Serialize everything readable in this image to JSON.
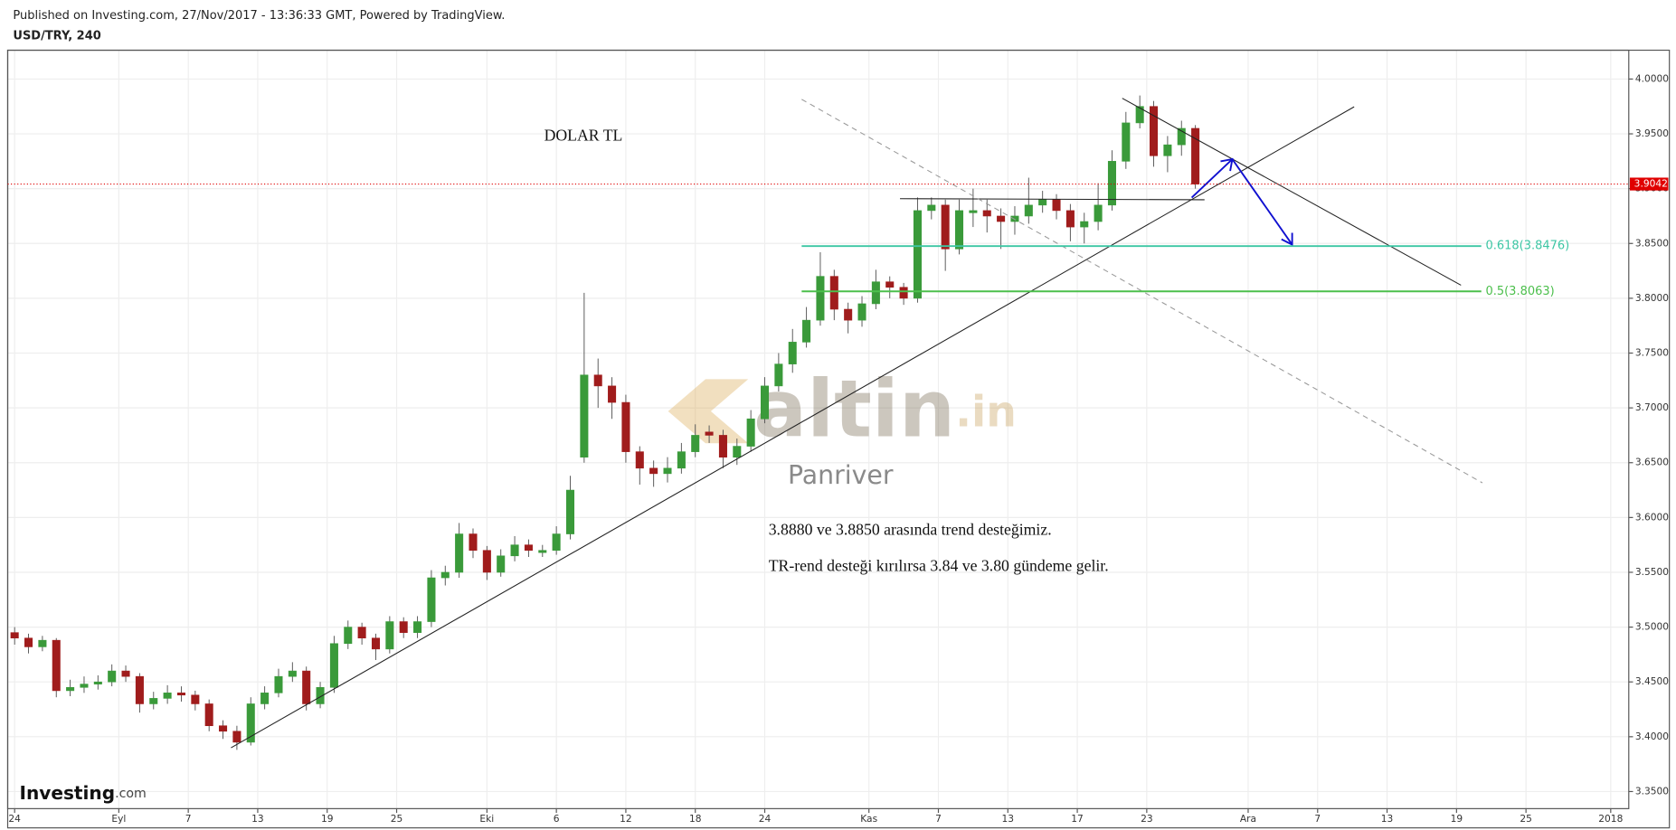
{
  "header": {
    "published": "Published on Investing.com, 27/Nov/2017 - 13:36:33 GMT, Powered by TradingView.",
    "symbol": "USD/TRY, 240"
  },
  "chart_data": {
    "type": "candlestick",
    "up_color": "#3a9a3a",
    "down_color": "#a01c1c",
    "grid": true,
    "x": [
      0,
      1,
      2,
      3,
      4,
      5,
      6,
      7,
      8,
      9,
      10,
      11,
      12,
      13,
      14,
      15,
      16,
      17,
      18,
      19,
      20,
      21,
      22,
      23,
      24,
      25,
      26,
      27,
      28,
      29,
      30,
      31,
      32,
      33,
      34,
      35,
      36,
      37,
      38,
      39,
      40,
      41,
      42,
      43,
      44,
      45,
      46,
      47,
      48,
      49,
      50,
      51,
      52,
      53,
      54,
      55,
      56,
      57,
      58,
      59,
      60,
      61,
      62,
      63,
      64,
      65,
      66,
      67,
      68,
      69,
      70,
      71,
      72,
      73,
      74,
      75,
      76,
      77,
      78,
      79,
      80,
      81,
      82,
      83,
      84,
      85
    ],
    "open": [
      3.495,
      3.49,
      3.482,
      3.488,
      3.442,
      3.445,
      3.448,
      3.45,
      3.46,
      3.455,
      3.43,
      3.435,
      3.44,
      3.438,
      3.43,
      3.41,
      3.405,
      3.395,
      3.43,
      3.44,
      3.455,
      3.46,
      3.43,
      3.445,
      3.485,
      3.5,
      3.49,
      3.48,
      3.505,
      3.495,
      3.505,
      3.545,
      3.55,
      3.585,
      3.57,
      3.55,
      3.565,
      3.575,
      3.568,
      3.57,
      3.585,
      3.655,
      3.73,
      3.72,
      3.705,
      3.66,
      3.645,
      3.64,
      3.645,
      3.66,
      3.678,
      3.675,
      3.655,
      3.665,
      3.69,
      3.72,
      3.74,
      3.76,
      3.78,
      3.82,
      3.79,
      3.78,
      3.795,
      3.815,
      3.81,
      3.8,
      3.88,
      3.885,
      3.845,
      3.878,
      3.88,
      3.875,
      3.87,
      3.875,
      3.885,
      3.89,
      3.88,
      3.865,
      3.87,
      3.885,
      3.925,
      3.96,
      3.975,
      3.93,
      3.94,
      3.955
    ],
    "high": [
      3.5,
      3.494,
      3.492,
      3.49,
      3.452,
      3.455,
      3.456,
      3.466,
      3.465,
      3.458,
      3.441,
      3.447,
      3.446,
      3.442,
      3.434,
      3.415,
      3.41,
      3.436,
      3.446,
      3.462,
      3.468,
      3.464,
      3.45,
      3.492,
      3.506,
      3.504,
      3.494,
      3.51,
      3.509,
      3.51,
      3.552,
      3.556,
      3.595,
      3.59,
      3.574,
      3.571,
      3.583,
      3.58,
      3.575,
      3.592,
      3.638,
      3.805,
      3.745,
      3.728,
      3.712,
      3.665,
      3.652,
      3.655,
      3.668,
      3.685,
      3.684,
      3.68,
      3.672,
      3.698,
      3.728,
      3.75,
      3.772,
      3.792,
      3.842,
      3.826,
      3.796,
      3.802,
      3.826,
      3.82,
      3.814,
      3.892,
      3.892,
      3.89,
      3.89,
      3.9,
      3.89,
      3.882,
      3.884,
      3.91,
      3.898,
      3.895,
      3.886,
      3.878,
      3.905,
      3.935,
      3.97,
      3.985,
      3.98,
      3.948,
      3.962,
      3.958
    ],
    "low": [
      3.484,
      3.476,
      3.478,
      3.436,
      3.437,
      3.44,
      3.443,
      3.446,
      3.45,
      3.422,
      3.425,
      3.43,
      3.432,
      3.424,
      3.405,
      3.398,
      3.388,
      3.392,
      3.425,
      3.436,
      3.45,
      3.424,
      3.426,
      3.44,
      3.48,
      3.484,
      3.47,
      3.476,
      3.49,
      3.49,
      3.5,
      3.538,
      3.545,
      3.563,
      3.543,
      3.546,
      3.56,
      3.564,
      3.564,
      3.566,
      3.58,
      3.65,
      3.7,
      3.69,
      3.65,
      3.63,
      3.628,
      3.632,
      3.64,
      3.655,
      3.668,
      3.645,
      3.648,
      3.66,
      3.686,
      3.715,
      3.732,
      3.755,
      3.775,
      3.78,
      3.768,
      3.774,
      3.79,
      3.8,
      3.794,
      3.796,
      3.872,
      3.825,
      3.84,
      3.865,
      3.86,
      3.845,
      3.858,
      3.868,
      3.878,
      3.872,
      3.852,
      3.85,
      3.862,
      3.88,
      3.918,
      3.955,
      3.92,
      3.915,
      3.93,
      3.9
    ],
    "close": [
      3.49,
      3.482,
      3.488,
      3.442,
      3.445,
      3.448,
      3.45,
      3.46,
      3.455,
      3.43,
      3.435,
      3.44,
      3.438,
      3.43,
      3.41,
      3.405,
      3.395,
      3.43,
      3.44,
      3.455,
      3.46,
      3.43,
      3.445,
      3.485,
      3.5,
      3.49,
      3.48,
      3.505,
      3.495,
      3.505,
      3.545,
      3.55,
      3.585,
      3.57,
      3.55,
      3.565,
      3.575,
      3.57,
      3.57,
      3.585,
      3.625,
      3.73,
      3.72,
      3.705,
      3.66,
      3.645,
      3.64,
      3.645,
      3.66,
      3.675,
      3.675,
      3.655,
      3.665,
      3.69,
      3.72,
      3.74,
      3.76,
      3.78,
      3.82,
      3.79,
      3.78,
      3.795,
      3.815,
      3.81,
      3.8,
      3.88,
      3.885,
      3.845,
      3.88,
      3.88,
      3.875,
      3.87,
      3.875,
      3.885,
      3.89,
      3.88,
      3.865,
      3.87,
      3.885,
      3.925,
      3.96,
      3.975,
      3.93,
      3.94,
      3.955,
      3.9042
    ],
    "xlim": [
      -0.5,
      116.2
    ],
    "xticks": [
      {
        "value": 0,
        "label": "24"
      },
      {
        "value": 7.5,
        "label": "Eyl"
      },
      {
        "value": 12.5,
        "label": "7"
      },
      {
        "value": 17.5,
        "label": "13"
      },
      {
        "value": 22.5,
        "label": "19"
      },
      {
        "value": 27.5,
        "label": "25"
      },
      {
        "value": 34,
        "label": "Eki"
      },
      {
        "value": 39,
        "label": "6"
      },
      {
        "value": 44,
        "label": "12"
      },
      {
        "value": 49,
        "label": "18"
      },
      {
        "value": 54,
        "label": "24"
      },
      {
        "value": 61.5,
        "label": "Kas"
      },
      {
        "value": 66.5,
        "label": "7"
      },
      {
        "value": 71.5,
        "label": "13"
      },
      {
        "value": 76.5,
        "label": "17"
      },
      {
        "value": 81.5,
        "label": "23"
      },
      {
        "value": 88.8,
        "label": "Ara"
      },
      {
        "value": 93.8,
        "label": "7"
      },
      {
        "value": 98.8,
        "label": "13"
      },
      {
        "value": 103.8,
        "label": "19"
      },
      {
        "value": 108.8,
        "label": "25"
      },
      {
        "value": 114.9,
        "label": "2018"
      }
    ],
    "ylim": [
      3.3344,
      4.0263
    ],
    "yticks": [
      {
        "value": 3.35,
        "label": "3.3500"
      },
      {
        "value": 3.4,
        "label": "3.4000"
      },
      {
        "value": 3.45,
        "label": "3.4500"
      },
      {
        "value": 3.5,
        "label": "3.5000"
      },
      {
        "value": 3.55,
        "label": "3.5500"
      },
      {
        "value": 3.6,
        "label": "3.6000"
      },
      {
        "value": 3.65,
        "label": "3.6500"
      },
      {
        "value": 3.7,
        "label": "3.7000"
      },
      {
        "value": 3.75,
        "label": "3.7500"
      },
      {
        "value": 3.8,
        "label": "3.8000"
      },
      {
        "value": 3.85,
        "label": "3.8500"
      },
      {
        "value": 3.9,
        "label": "3.9000"
      },
      {
        "value": 3.95,
        "label": "3.9500"
      },
      {
        "value": 4.0,
        "label": "4.0000"
      }
    ],
    "price_line": {
      "value": 3.9042,
      "label": "3.9042",
      "color": "#e00000"
    },
    "fib_levels": [
      {
        "value": 3.8476,
        "label": "0.618(3.8476)",
        "color": "#3cc6a4"
      },
      {
        "value": 3.8063,
        "label": "0.5(3.8063)",
        "color": "#4cbf4c"
      }
    ],
    "annotations": {
      "title": "DOLAR TL",
      "line1": "3.8880 ve 3.8850 arasında trend desteğimiz.",
      "line2": "TR-rend desteği kırılırsa 3.84 ve 3.80 gündeme gelir."
    },
    "watermark": {
      "brand": "altin",
      "suffix": ".in",
      "sub": "Panriver"
    },
    "logo": {
      "brand": "Investing",
      "suffix": ".com"
    }
  }
}
